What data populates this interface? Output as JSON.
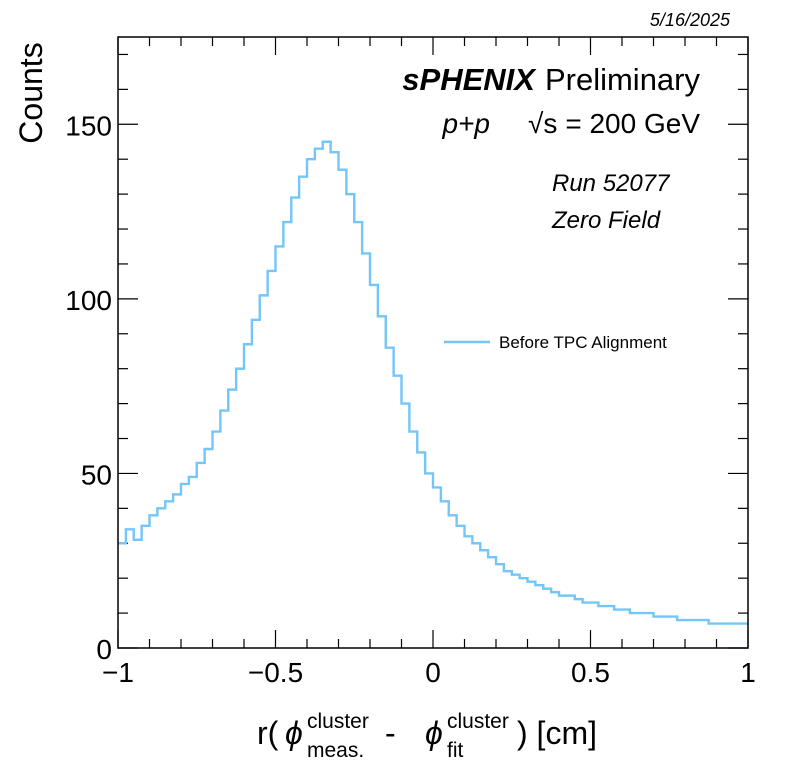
{
  "date": "5/16/2025",
  "header": {
    "experiment": "sPHENIX",
    "status": "Preliminary",
    "collision": "p+p",
    "energy_symbol": "√s",
    "energy_value": "= 200 GeV",
    "run": "Run 52077",
    "field": "Zero Field"
  },
  "axes": {
    "y_title": "Counts",
    "x_title_prefix": "r(",
    "phi_symbol": "ϕ",
    "sup1": "cluster",
    "sub1": "meas.",
    "minus": "-",
    "sup2": "cluster",
    "sub2": "fit",
    "x_title_suffix": ") [cm]"
  },
  "colors": {
    "series": "#73c6f7",
    "frame": "#000000"
  },
  "chart_data": {
    "type": "line",
    "title": "",
    "xlabel": "r(ϕ_meas.^cluster - ϕ_fit^cluster) [cm]",
    "ylabel": "Counts",
    "xlim": [
      -1,
      1
    ],
    "ylim": [
      0,
      175
    ],
    "x_ticks": [
      -1,
      -0.5,
      0,
      0.5,
      1
    ],
    "x_tick_labels": [
      "−1",
      "−0.5",
      "0",
      "0.5",
      "1"
    ],
    "y_ticks": [
      0,
      50,
      100,
      150
    ],
    "y_tick_labels": [
      "0",
      "50",
      "100",
      "150"
    ],
    "legend": {
      "position": "center-right",
      "entries": [
        "Before TPC  Alignment"
      ]
    },
    "grid": false,
    "series": [
      {
        "name": "Before TPC  Alignment",
        "step": true,
        "x": [
          -1.0,
          -0.975,
          -0.95,
          -0.925,
          -0.9,
          -0.875,
          -0.85,
          -0.825,
          -0.8,
          -0.775,
          -0.75,
          -0.725,
          -0.7,
          -0.675,
          -0.65,
          -0.625,
          -0.6,
          -0.575,
          -0.55,
          -0.525,
          -0.5,
          -0.475,
          -0.45,
          -0.425,
          -0.4,
          -0.375,
          -0.35,
          -0.325,
          -0.3,
          -0.275,
          -0.25,
          -0.225,
          -0.2,
          -0.175,
          -0.15,
          -0.125,
          -0.1,
          -0.075,
          -0.05,
          -0.025,
          0.0,
          0.025,
          0.05,
          0.075,
          0.1,
          0.125,
          0.15,
          0.175,
          0.2,
          0.225,
          0.25,
          0.275,
          0.3,
          0.325,
          0.35,
          0.375,
          0.4,
          0.425,
          0.45,
          0.475,
          0.5,
          0.525,
          0.55,
          0.575,
          0.6,
          0.625,
          0.65,
          0.675,
          0.7,
          0.725,
          0.75,
          0.775,
          0.8,
          0.825,
          0.85,
          0.875,
          0.9,
          0.925,
          0.95,
          0.975
        ],
        "values": [
          30,
          34,
          31,
          35,
          38,
          40,
          42,
          44,
          47,
          49,
          53,
          57,
          62,
          68,
          74,
          80,
          87,
          94,
          101,
          108,
          115,
          122,
          129,
          135,
          140,
          143,
          145,
          142,
          137,
          130,
          122,
          113,
          104,
          95,
          86,
          78,
          70,
          62,
          56,
          50,
          46,
          42,
          38,
          35,
          32,
          30,
          28,
          26,
          24,
          22,
          21,
          20,
          19,
          18,
          17,
          16,
          15,
          15,
          14,
          13,
          13,
          12,
          12,
          11,
          11,
          10,
          10,
          10,
          9,
          9,
          9,
          8,
          8,
          8,
          8,
          7,
          7,
          7,
          7,
          7
        ]
      }
    ]
  }
}
